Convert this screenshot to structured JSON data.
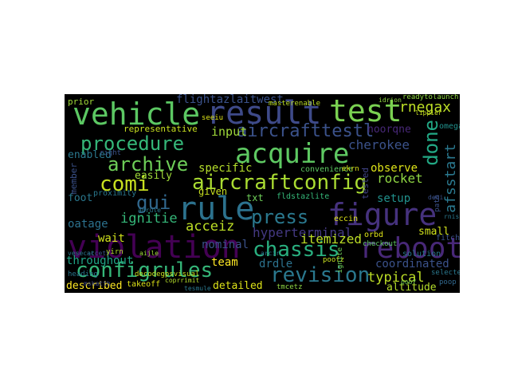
{
  "words": [
    {
      "text": "vehicle",
      "color": "#5cc863"
    },
    {
      "text": "result",
      "color": "#3e4a89"
    },
    {
      "text": "test",
      "color": "#7ad151"
    },
    {
      "text": "rnegax",
      "color": "#bddf26"
    },
    {
      "text": "flightazlaitwest",
      "color": "#3b528b"
    },
    {
      "text": "aircrafttestl",
      "color": "#3b528b"
    },
    {
      "text": "procedure",
      "color": "#35b779"
    },
    {
      "text": "acquire",
      "color": "#5ec962"
    },
    {
      "text": "done",
      "color": "#22a884"
    },
    {
      "text": "archive",
      "color": "#6ece58"
    },
    {
      "text": "cherokee",
      "color": "#3b528b"
    },
    {
      "text": "afsstart",
      "color": "#2a788e"
    },
    {
      "text": "comi",
      "color": "#c8e020"
    },
    {
      "text": "aircraftconfig",
      "color": "#aadc32"
    },
    {
      "text": "rocket",
      "color": "#90d743"
    },
    {
      "text": "gui",
      "color": "#31688e"
    },
    {
      "text": "rule",
      "color": "#2c728e"
    },
    {
      "text": "press",
      "color": "#2a788e"
    },
    {
      "text": "figure",
      "color": "#46327e"
    },
    {
      "text": "ignitie",
      "color": "#35b779"
    },
    {
      "text": "acceiz",
      "color": "#bddf26"
    },
    {
      "text": "hyperterminal",
      "color": "#443983"
    },
    {
      "text": "violation",
      "color": "#440154"
    },
    {
      "text": "chassis",
      "color": "#29af7f"
    },
    {
      "text": "reboot",
      "color": "#482878"
    },
    {
      "text": "configrules",
      "color": "#35b779"
    },
    {
      "text": "revision",
      "color": "#2a788e"
    },
    {
      "text": "typical",
      "color": "#bddf26"
    },
    {
      "text": "coordinated",
      "color": "#3b528b"
    },
    {
      "text": "drdle",
      "color": "#2c728e"
    },
    {
      "text": "throughout",
      "color": "#20a486"
    },
    {
      "text": "team",
      "color": "#fde725"
    },
    {
      "text": "described",
      "color": "#fde725"
    },
    {
      "text": "detailed",
      "color": "#dde318"
    },
    {
      "text": "altitude",
      "color": "#b5de2b"
    },
    {
      "text": "input",
      "color": "#a0da39"
    },
    {
      "text": "specific",
      "color": "#b5de2b"
    },
    {
      "text": "easily",
      "color": "#a0da39"
    },
    {
      "text": "observe",
      "color": "#dde318"
    },
    {
      "text": "setup",
      "color": "#21918c"
    },
    {
      "text": "itemized",
      "color": "#bddf26"
    },
    {
      "text": "oatage",
      "color": "#2c728e"
    },
    {
      "text": "wait",
      "color": "#d0e11c"
    },
    {
      "text": "nominal",
      "color": "#3b528b"
    },
    {
      "text": "small",
      "color": "#d0e11c"
    },
    {
      "text": "enabled",
      "color": "#2a788e"
    },
    {
      "text": "foot",
      "color": "#2a788e"
    },
    {
      "text": "member",
      "color": "#3b528b"
    },
    {
      "text": "given",
      "color": "#c8e020"
    },
    {
      "text": "txt",
      "color": "#6ece58"
    },
    {
      "text": "representative",
      "color": "#c8e020"
    },
    {
      "text": "convenience",
      "color": "#5ec962"
    },
    {
      "text": "tested",
      "color": "#414487"
    },
    {
      "text": "noorqne",
      "color": "#482878"
    },
    {
      "text": "omega",
      "color": "#21918c"
    },
    {
      "text": "prior",
      "color": "#a0da39"
    },
    {
      "text": "proximity",
      "color": "#2a788e"
    },
    {
      "text": "fitch",
      "color": "#3b528b"
    },
    {
      "text": "readytolaunch",
      "color": "#90d743"
    },
    {
      "text": "solution",
      "color": "#2a788e"
    },
    {
      "text": "masterenable",
      "color": "#bddf26"
    },
    {
      "text": "eccin",
      "color": "#dde318"
    },
    {
      "text": "orbd",
      "color": "#dde318"
    },
    {
      "text": "poof",
      "color": "#6ece58"
    },
    {
      "text": "checkout",
      "color": "#5ec962"
    },
    {
      "text": "takeoff",
      "color": "#dde318"
    },
    {
      "text": "heading",
      "color": "#2a788e"
    },
    {
      "text": "decodegpsvisual",
      "color": "#c8e020"
    },
    {
      "text": "selected",
      "color": "#2a788e"
    },
    {
      "text": "poop",
      "color": "#31688e"
    },
    {
      "text": "tmcetz",
      "color": "#90d743"
    },
    {
      "text": "fldstazlite",
      "color": "#35b779"
    },
    {
      "text": "right",
      "color": "#3b528b"
    },
    {
      "text": "seeiu",
      "color": "#dde318"
    },
    {
      "text": "path",
      "color": "#3b528b"
    },
    {
      "text": "ignite",
      "color": "#6ece58"
    },
    {
      "text": "mskatth",
      "color": "#3e4a89"
    },
    {
      "text": "adrule",
      "color": "#2a788e"
    },
    {
      "text": "accety",
      "color": "#3b528b"
    },
    {
      "text": "arcir",
      "color": "#2a788e"
    },
    {
      "text": "ekrn",
      "color": "#dde318"
    },
    {
      "text": "yirn",
      "color": "#b5de2b"
    },
    {
      "text": "aijle",
      "color": "#a0da39"
    },
    {
      "text": "coprrimit",
      "color": "#b5de2b"
    },
    {
      "text": "lippier",
      "color": "#c8e020"
    },
    {
      "text": "idrion",
      "color": "#90d743"
    },
    {
      "text": "vesecat",
      "color": "#2a788e"
    },
    {
      "text": "poofz",
      "color": "#c8e020"
    },
    {
      "text": "tesmule",
      "color": "#2a788e"
    },
    {
      "text": "deqi",
      "color": "#3b528b"
    },
    {
      "text": "rnis",
      "color": "#2a788e"
    }
  ]
}
